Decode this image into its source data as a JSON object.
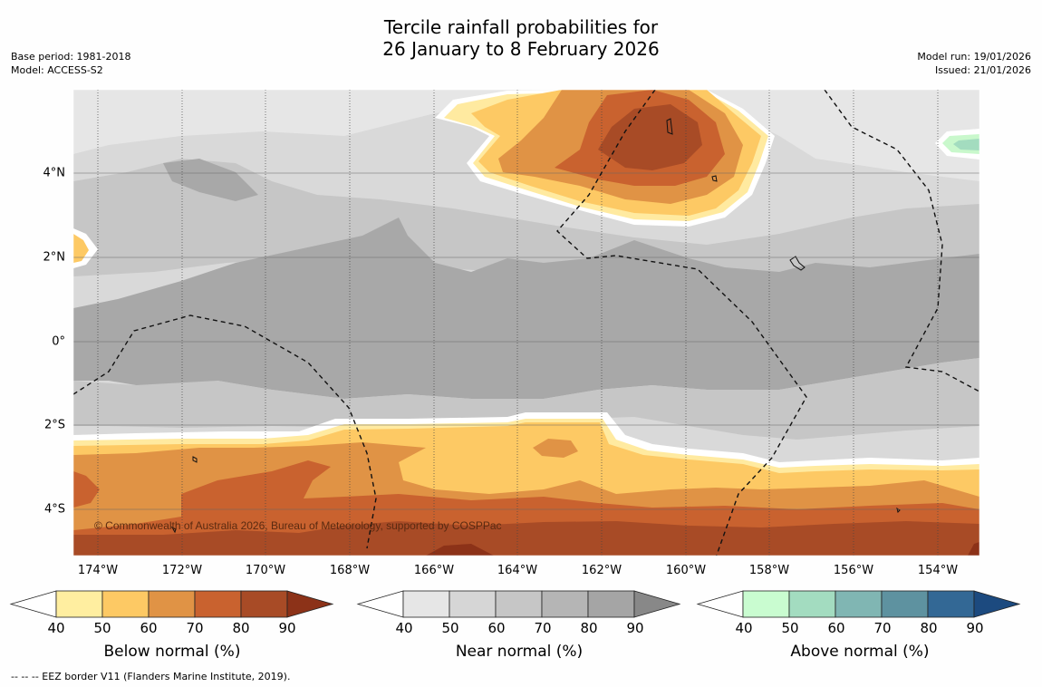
{
  "title": {
    "line1": "Tercile rainfall probabilities for",
    "line2": "26 January to 8 February 2026"
  },
  "meta_left": {
    "base_period": "Base period: 1981-2018",
    "model": "Model: ACCESS-S2"
  },
  "meta_right": {
    "model_run": "Model run: 19/01/2026",
    "issued": "Issued: 21/01/2026"
  },
  "map": {
    "lon_labels": [
      "174°W",
      "172°W",
      "170°W",
      "168°W",
      "166°W",
      "164°W",
      "162°W",
      "160°W",
      "158°W",
      "156°W",
      "154°W"
    ],
    "lat_labels": [
      "4°N",
      "2°N",
      "0°",
      "2°S",
      "4°S"
    ],
    "copyright": "© Commonwealth of Australia 2026, Bureau of Meteorology, supported by COSPPac",
    "colors": {
      "background_near": "#d9d9d9",
      "near_light": "#e6e6e6",
      "near_mid": "#c6c6c6",
      "near_dark": "#a8a8a8",
      "below_40": "#ffeaa0",
      "below_50": "#fdc964",
      "below_60": "#e09345",
      "below_70": "#c9622f",
      "below_80": "#a84b26",
      "above_50": "#c9f8cc",
      "above_60": "#a3dcbf"
    }
  },
  "colorbars": [
    {
      "title": "Below normal (%)",
      "ticks": [
        "40",
        "50",
        "60",
        "70",
        "80",
        "90"
      ],
      "colors": [
        "#ffeea0",
        "#fdc964",
        "#e09345",
        "#c9622f",
        "#a84b26",
        "#8c3218"
      ]
    },
    {
      "title": "Near normal (%)",
      "ticks": [
        "40",
        "50",
        "60",
        "70",
        "80",
        "90"
      ],
      "colors": [
        "#e6e6e6",
        "#d6d6d6",
        "#c6c6c6",
        "#b5b5b5",
        "#a5a5a5",
        "#888888"
      ]
    },
    {
      "title": "Above normal (%)",
      "ticks": [
        "40",
        "50",
        "60",
        "70",
        "80",
        "90"
      ],
      "colors": [
        "#c9fcd0",
        "#a3dcc0",
        "#80b6b3",
        "#5e92a0",
        "#336895",
        "#1c4a7f"
      ]
    }
  ],
  "footnote": "--  --  -- EEZ border V11 (Flanders Marine Institute, 2019)."
}
